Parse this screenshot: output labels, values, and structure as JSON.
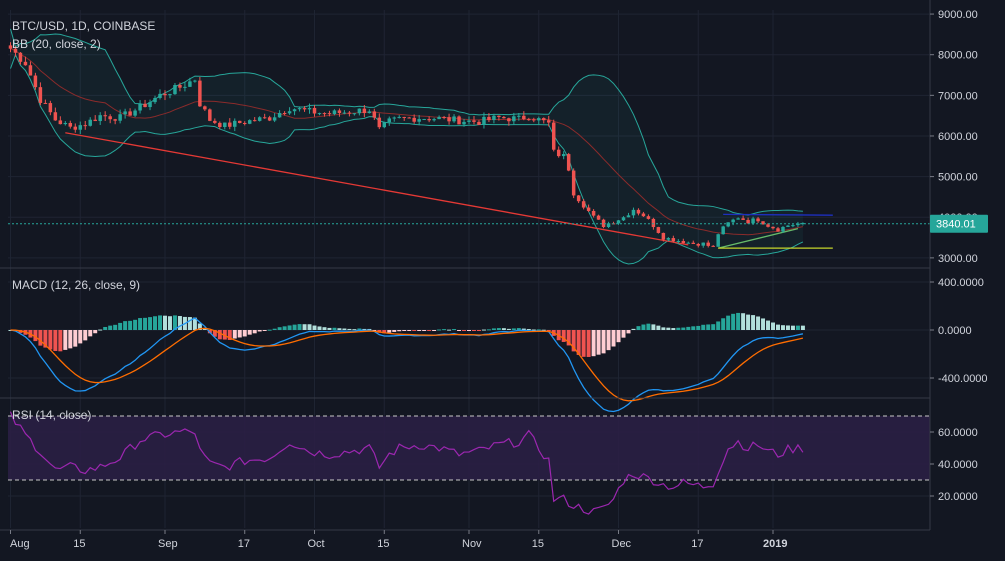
{
  "chart_data": {
    "type": "candlestick",
    "title": "BTC/USD, 1D, COINBASE",
    "last_price": "3840.01",
    "colors": {
      "background": "#131722",
      "up": "#26a69a",
      "down": "#ef5350",
      "bb_band": "#27a69a",
      "bb_basis": "#8b2b2b",
      "macd": "#2196f3",
      "signal": "#ff6d00",
      "rsi": "#9c27b0",
      "rsi_band": "#2a1f44",
      "price_line": "#26a69a"
    },
    "x_ticks": [
      "Aug",
      "15",
      "Sep",
      "17",
      "Oct",
      "15",
      "Nov",
      "15",
      "Dec",
      "17",
      "2019"
    ],
    "panes": {
      "price": {
        "indicator_label": "BB (20, close, 2)",
        "ylim": [
          2800,
          9100
        ],
        "yticks": [
          "9000.00",
          "8000.00",
          "7000.00",
          "6000.00",
          "5000.00",
          "4000.00",
          "3000.00"
        ],
        "drawings": [
          {
            "name": "red-trendline",
            "color": "#e53935",
            "from": [
              11,
              6080
            ],
            "to": [
              136,
              3320
            ]
          },
          {
            "name": "green-trendline",
            "color": "#66bb6a",
            "from": [
              142,
              3240
            ],
            "to": [
              158,
              3720
            ]
          },
          {
            "name": "blue-resistance",
            "color": "#1e2fbf",
            "from": [
              143,
              4070
            ],
            "to": [
              165,
              4050
            ]
          },
          {
            "name": "yellow-support",
            "color": "#c6d62b",
            "from": [
              142,
              3240
            ],
            "to": [
              165,
              3240
            ]
          }
        ]
      },
      "macd": {
        "indicator_label": "MACD (12, 26, close, 9)",
        "ylim": [
          -550,
          500
        ],
        "yticks": [
          "400.0000",
          "0.0000",
          "-400.0000"
        ]
      },
      "rsi": {
        "indicator_label": "RSI (14, close)",
        "ylim": [
          0,
          80
        ],
        "band": [
          30,
          70
        ],
        "yticks": [
          "60.0000",
          "40.0000",
          "20.0000"
        ]
      }
    },
    "anchors_close": [
      [
        0,
        8150
      ],
      [
        3,
        7800
      ],
      [
        6,
        6900
      ],
      [
        9,
        6400
      ],
      [
        12,
        6200
      ],
      [
        15,
        6300
      ],
      [
        18,
        6500
      ],
      [
        22,
        6450
      ],
      [
        26,
        6700
      ],
      [
        30,
        7000
      ],
      [
        34,
        7200
      ],
      [
        37,
        7400
      ],
      [
        38,
        6800
      ],
      [
        40,
        6400
      ],
      [
        43,
        6250
      ],
      [
        47,
        6350
      ],
      [
        52,
        6450
      ],
      [
        56,
        6700
      ],
      [
        60,
        6600
      ],
      [
        64,
        6550
      ],
      [
        68,
        6600
      ],
      [
        72,
        6650
      ],
      [
        74,
        6150
      ],
      [
        76,
        6350
      ],
      [
        78,
        6420
      ],
      [
        82,
        6450
      ],
      [
        86,
        6430
      ],
      [
        90,
        6380
      ],
      [
        94,
        6350
      ],
      [
        98,
        6450
      ],
      [
        102,
        6420
      ],
      [
        104,
        6500
      ],
      [
        106,
        6400
      ],
      [
        108,
        6300
      ],
      [
        109,
        5600
      ],
      [
        111,
        5500
      ],
      [
        112,
        5200
      ],
      [
        113,
        4600
      ],
      [
        115,
        4300
      ],
      [
        117,
        4000
      ],
      [
        119,
        3800
      ],
      [
        121,
        3900
      ],
      [
        123,
        4000
      ],
      [
        125,
        4200
      ],
      [
        127,
        4050
      ],
      [
        129,
        3800
      ],
      [
        131,
        3500
      ],
      [
        133,
        3450
      ],
      [
        135,
        3400
      ],
      [
        137,
        3350
      ],
      [
        139,
        3350
      ],
      [
        141,
        3250
      ],
      [
        142,
        3600
      ],
      [
        144,
        3850
      ],
      [
        146,
        4000
      ],
      [
        148,
        3900
      ],
      [
        150,
        3950
      ],
      [
        152,
        3800
      ],
      [
        154,
        3700
      ],
      [
        156,
        3800
      ],
      [
        158,
        3840
      ]
    ],
    "anchors_rsi": [
      [
        0,
        70
      ],
      [
        3,
        58
      ],
      [
        6,
        48
      ],
      [
        9,
        36
      ],
      [
        12,
        38
      ],
      [
        15,
        36
      ],
      [
        18,
        38
      ],
      [
        22,
        44
      ],
      [
        26,
        55
      ],
      [
        30,
        58
      ],
      [
        34,
        60
      ],
      [
        37,
        60
      ],
      [
        38,
        48
      ],
      [
        40,
        40
      ],
      [
        43,
        38
      ],
      [
        47,
        42
      ],
      [
        52,
        44
      ],
      [
        56,
        54
      ],
      [
        60,
        48
      ],
      [
        64,
        46
      ],
      [
        68,
        48
      ],
      [
        72,
        50
      ],
      [
        74,
        38
      ],
      [
        76,
        46
      ],
      [
        78,
        50
      ],
      [
        82,
        52
      ],
      [
        86,
        50
      ],
      [
        90,
        46
      ],
      [
        94,
        48
      ],
      [
        98,
        52
      ],
      [
        102,
        54
      ],
      [
        104,
        58
      ],
      [
        106,
        50
      ],
      [
        108,
        42
      ],
      [
        109,
        18
      ],
      [
        111,
        18
      ],
      [
        112,
        16
      ],
      [
        113,
        14
      ],
      [
        115,
        12
      ],
      [
        117,
        10
      ],
      [
        119,
        12
      ],
      [
        121,
        18
      ],
      [
        123,
        30
      ],
      [
        125,
        34
      ],
      [
        127,
        32
      ],
      [
        129,
        30
      ],
      [
        131,
        27
      ],
      [
        133,
        26
      ],
      [
        135,
        28
      ],
      [
        137,
        27
      ],
      [
        139,
        26
      ],
      [
        141,
        28
      ],
      [
        142,
        36
      ],
      [
        144,
        50
      ],
      [
        146,
        54
      ],
      [
        148,
        50
      ],
      [
        150,
        52
      ],
      [
        152,
        48
      ],
      [
        154,
        46
      ],
      [
        156,
        49
      ],
      [
        158,
        50
      ]
    ]
  }
}
